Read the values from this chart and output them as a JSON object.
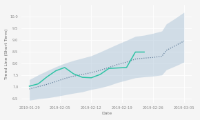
{
  "title": "",
  "xlabel": "Date",
  "ylabel": "Trend Line (Short Term)",
  "background_color": "#f5f5f5",
  "grid_color": "#ffffff",
  "dates": [
    "2019-01-29",
    "2019-01-31",
    "2019-02-02",
    "2019-02-04",
    "2019-02-06",
    "2019-02-08",
    "2019-02-10",
    "2019-02-12",
    "2019-02-14",
    "2019-02-16",
    "2019-02-18",
    "2019-02-20",
    "2019-02-22",
    "2019-02-24",
    "2019-02-26",
    "2019-02-28",
    "2019-03-01",
    "2019-03-03",
    "2019-03-05"
  ],
  "trend_line": [
    6.9,
    7.0,
    7.1,
    7.22,
    7.35,
    7.45,
    7.52,
    7.6,
    7.7,
    7.82,
    7.95,
    8.05,
    8.18,
    8.22,
    8.25,
    8.3,
    8.55,
    8.75,
    8.95
  ],
  "upper_band": [
    7.3,
    7.5,
    7.68,
    7.85,
    8.0,
    8.12,
    8.22,
    8.32,
    8.48,
    8.65,
    8.82,
    8.98,
    9.15,
    9.2,
    9.28,
    9.38,
    9.68,
    9.92,
    10.18
  ],
  "lower_band": [
    6.42,
    6.48,
    6.52,
    6.58,
    6.65,
    6.72,
    6.78,
    6.88,
    6.95,
    7.05,
    7.18,
    7.28,
    7.38,
    7.42,
    7.45,
    7.5,
    7.72,
    7.88,
    8.05
  ],
  "actual_line": [
    7.02,
    7.12,
    7.42,
    7.68,
    7.82,
    7.55,
    7.4,
    7.38,
    7.52,
    7.78,
    7.8,
    7.82,
    8.48,
    8.48,
    null,
    null,
    null,
    null,
    null
  ],
  "trend_color": "#607d9a",
  "actual_color": "#2ec4a5",
  "band_color": "#adc4d8",
  "band_alpha": 0.5,
  "ylim": [
    6.3,
    10.5
  ],
  "tick_dates": [
    "2019-01-29",
    "2019-02-05",
    "2019-02-12",
    "2019-02-19",
    "2019-02-26",
    "2019-03-05"
  ],
  "tick_labels": [
    "2019-01-29",
    "2019-02-05",
    "2019-02-12",
    "2019-02-19",
    "2019-02-26",
    "2019-03-05"
  ],
  "yticks": [
    6.5,
    7.0,
    7.5,
    8.0,
    8.5,
    9.0,
    9.5,
    10.0
  ],
  "label_fontsize": 4.5,
  "tick_fontsize": 3.8
}
